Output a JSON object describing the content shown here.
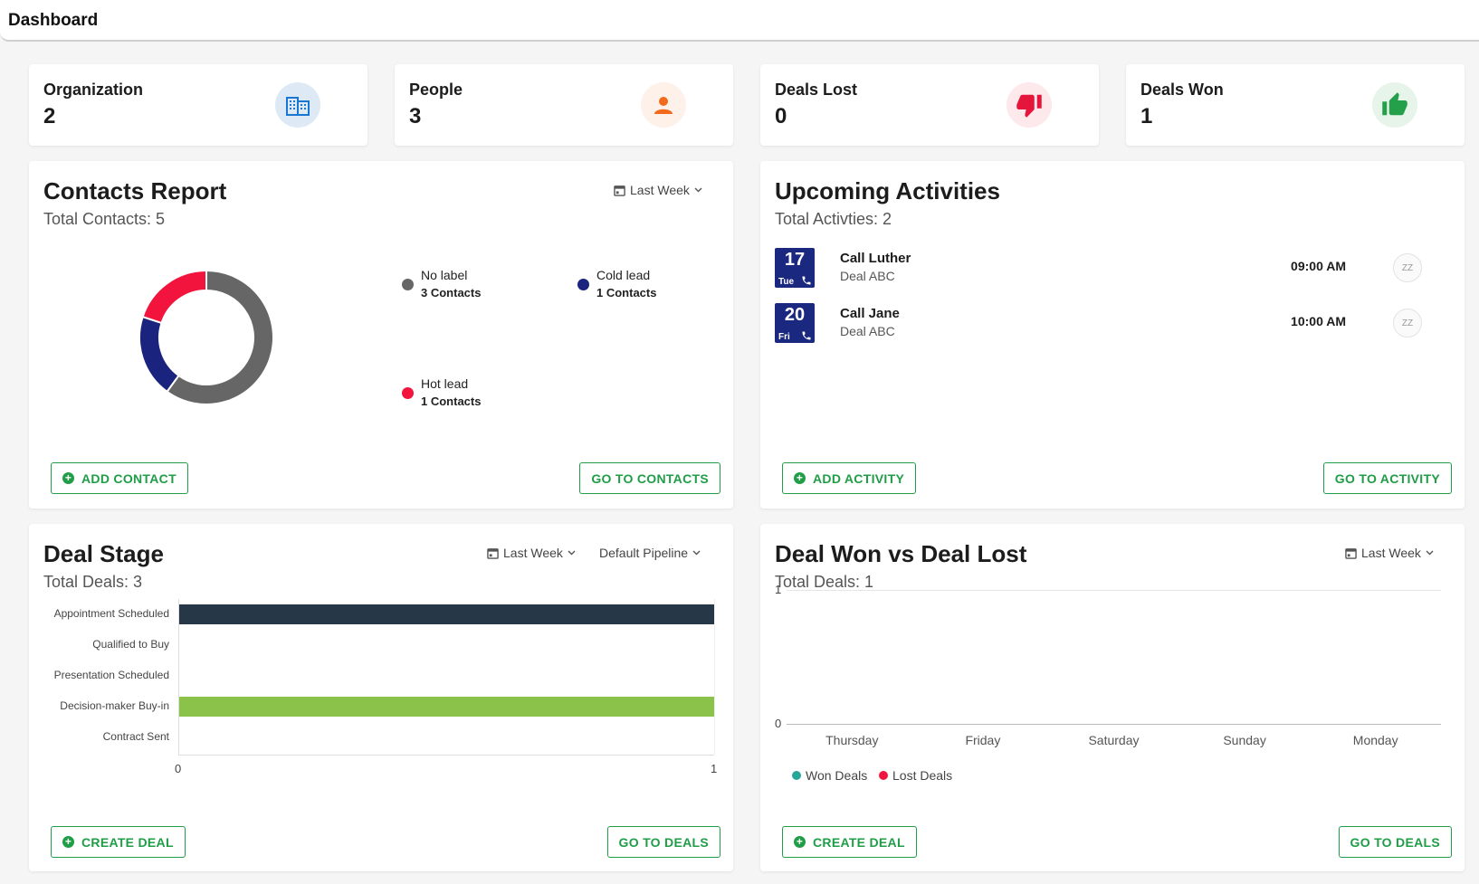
{
  "header": {
    "title": "Dashboard"
  },
  "stats": [
    {
      "label": "Organization",
      "value": "2",
      "icon": "building-icon",
      "color": "#1976d2",
      "bg": "#dde9f5"
    },
    {
      "label": "People",
      "value": "3",
      "icon": "person-icon",
      "color": "#f26a1b",
      "bg": "#fdf1ea"
    },
    {
      "label": "Deals Lost",
      "value": "0",
      "icon": "thumbs-down-icon",
      "color": "#e5153c",
      "bg": "#fde8ec"
    },
    {
      "label": "Deals Won",
      "value": "1",
      "icon": "thumbs-up-icon",
      "color": "#24a04a",
      "bg": "#e6f4ea"
    }
  ],
  "contacts_report": {
    "title": "Contacts Report",
    "subtitle": "Total Contacts: 5",
    "filter": "Last Week",
    "add_button": "ADD CONTACT",
    "go_button": "GO TO CONTACTS",
    "legend": [
      {
        "name": "No label",
        "count": "3 Contacts",
        "color": "#666666"
      },
      {
        "name": "Cold lead",
        "count": "1 Contacts",
        "color": "#1a237e"
      },
      {
        "name": "Hot lead",
        "count": "1 Contacts",
        "color": "#f2143c"
      }
    ]
  },
  "upcoming_activities": {
    "title": "Upcoming Activities",
    "subtitle": "Total Activties: 2",
    "add_button": "ADD ACTIVITY",
    "go_button": "GO TO ACTIVITY",
    "snooze_label": "ZZ",
    "items": [
      {
        "day": "17",
        "dow": "Tue",
        "name": "Call Luther",
        "deal": "Deal ABC",
        "time": "09:00 AM"
      },
      {
        "day": "20",
        "dow": "Fri",
        "name": "Call Jane",
        "deal": "Deal ABC",
        "time": "10:00 AM"
      }
    ]
  },
  "deal_stage": {
    "title": "Deal Stage",
    "subtitle": "Total Deals: 3",
    "filter": "Last Week",
    "pipeline": "Default Pipeline",
    "create_button": "CREATE DEAL",
    "go_button": "GO TO DEALS"
  },
  "deal_won_lost": {
    "title": "Deal Won vs Deal Lost",
    "subtitle": "Total Deals: 1",
    "filter": "Last Week",
    "create_button": "CREATE DEAL",
    "go_button": "GO TO DEALS",
    "legend": [
      {
        "name": "Won Deals",
        "color": "#26a69a"
      },
      {
        "name": "Lost Deals",
        "color": "#f2143c"
      }
    ]
  },
  "chart_data": [
    {
      "type": "pie",
      "categories": [
        "No label",
        "Cold lead",
        "Hot lead"
      ],
      "values": [
        3,
        1,
        1
      ],
      "colors": [
        "#666666",
        "#1a237e",
        "#f2143c"
      ],
      "legend": "right"
    },
    {
      "type": "bar",
      "orientation": "horizontal",
      "categories": [
        "Appointment Scheduled",
        "Qualified to Buy",
        "Presentation Scheduled",
        "Decision-maker Buy-in",
        "Contract Sent"
      ],
      "values": [
        1,
        0,
        0,
        1,
        0
      ],
      "colors": [
        "#263848",
        "#cccccc",
        "#cccccc",
        "#8bc34a",
        "#cccccc"
      ],
      "xlim": [
        0,
        1
      ],
      "xticks": [
        "0",
        "1"
      ]
    },
    {
      "type": "line",
      "categories": [
        "Thursday",
        "Friday",
        "Saturday",
        "Sunday",
        "Monday"
      ],
      "series": [
        {
          "name": "Won Deals",
          "values": [
            0,
            0,
            0,
            0,
            0
          ]
        },
        {
          "name": "Lost Deals",
          "values": [
            0,
            0,
            0,
            0,
            0
          ]
        }
      ],
      "ylim": [
        0,
        1
      ],
      "yticks": [
        "0",
        "1"
      ],
      "grid": true,
      "legend": "bottom-left"
    }
  ]
}
